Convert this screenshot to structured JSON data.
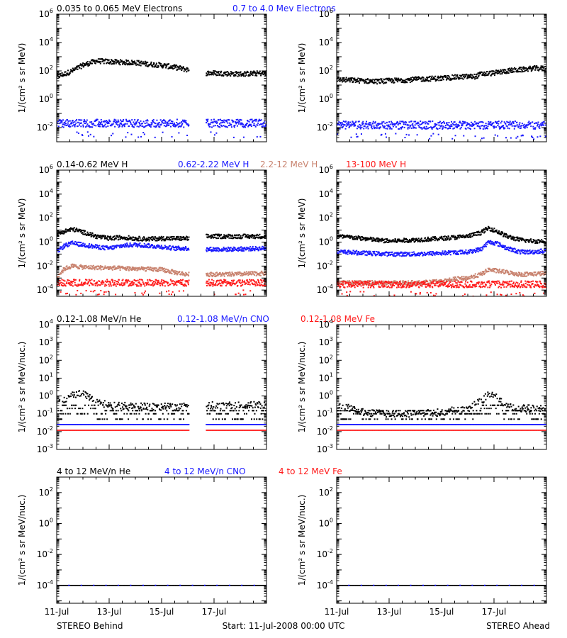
{
  "colors": {
    "black": "#000000",
    "blue": "#1a1aff",
    "brown": "#c8826e",
    "red": "#ff1a1a"
  },
  "footer": {
    "left": "STEREO Behind",
    "center": "Start: 11-Jul-2008 00:00 UTC",
    "right": "STEREO Ahead"
  },
  "x_ticks": [
    "11-Jul",
    "13-Jul",
    "15-Jul",
    "17-Jul"
  ],
  "chart_data": [
    {
      "type": "scatter",
      "title_parts": [
        {
          "text": "0.035 to 0.065 MeV Electrons",
          "color": "black"
        },
        {
          "text": "0.7 to 4.0 Mev Electrons",
          "color": "blue"
        }
      ],
      "ylabel": "1/(cm² s sr MeV)",
      "y_scale": "log",
      "ylim": [
        0.001,
        1000000
      ],
      "y_ticks": [
        {
          "exp": -2,
          "label": "10",
          "sup": "-2"
        },
        {
          "exp": 0,
          "label": "10",
          "sup": "0"
        },
        {
          "exp": 2,
          "label": "10",
          "sup": "2"
        },
        {
          "exp": 4,
          "label": "10",
          "sup": "4"
        },
        {
          "exp": 6,
          "label": "10",
          "sup": "6"
        }
      ],
      "xlim_days": [
        0,
        8
      ],
      "panels": [
        {
          "name": "STEREO Behind",
          "gap": [
            5.05,
            5.7
          ],
          "series": [
            {
              "name": "0.035 to 0.065 MeV Electrons",
              "color": "black",
              "style": "band",
              "x": [
                0,
                0.3,
                0.6,
                1.0,
                1.5,
                2.0,
                2.5,
                3.0,
                3.5,
                4.0,
                4.5,
                5.0,
                5.7,
                6.0,
                6.5,
                7.0,
                7.5,
                8.0
              ],
              "y": [
                40,
                60,
                100,
                250,
                500,
                450,
                400,
                380,
                300,
                250,
                180,
                120,
                70,
                70,
                65,
                60,
                65,
                70
              ]
            },
            {
              "name": "0.7 to 4.0 Mev Electrons",
              "color": "blue",
              "style": "scatter",
              "x": [
                0,
                8
              ],
              "y": [
                0.02,
                0.02
              ]
            }
          ]
        },
        {
          "name": "STEREO Ahead",
          "gap": null,
          "series": [
            {
              "name": "0.035 to 0.065 MeV Electrons",
              "color": "black",
              "style": "band",
              "x": [
                0,
                0.5,
                1.0,
                1.5,
                2.0,
                2.5,
                3.0,
                3.5,
                4.0,
                4.5,
                5.0,
                5.3,
                5.5,
                6.0,
                6.5,
                7.0,
                7.5,
                8.0
              ],
              "y": [
                25,
                22,
                20,
                18,
                20,
                22,
                25,
                28,
                30,
                35,
                40,
                40,
                60,
                70,
                100,
                120,
                150,
                150
              ]
            },
            {
              "name": "0.7 to 4.0 Mev Electrons",
              "color": "blue",
              "style": "scatter",
              "x": [
                0,
                8
              ],
              "y": [
                0.015,
                0.015
              ]
            }
          ]
        }
      ]
    },
    {
      "type": "scatter",
      "title_parts": [
        {
          "text": "0.14-0.62 MeV H",
          "color": "black"
        },
        {
          "text": "0.62-2.22 MeV H",
          "color": "blue"
        },
        {
          "text": "2.2-12 MeV H",
          "color": "brown"
        },
        {
          "text": "13-100 MeV H",
          "color": "red"
        }
      ],
      "ylabel": "1/(cm² s sr MeV)",
      "y_scale": "log",
      "ylim": [
        3e-05,
        1000000
      ],
      "y_ticks": [
        {
          "exp": -4,
          "label": "10",
          "sup": "-4"
        },
        {
          "exp": -2,
          "label": "10",
          "sup": "-2"
        },
        {
          "exp": 0,
          "label": "10",
          "sup": "0"
        },
        {
          "exp": 2,
          "label": "10",
          "sup": "2"
        },
        {
          "exp": 4,
          "label": "10",
          "sup": "4"
        },
        {
          "exp": 6,
          "label": "10",
          "sup": "6"
        }
      ],
      "xlim_days": [
        0,
        8
      ],
      "panels": [
        {
          "name": "STEREO Behind",
          "gap": [
            5.05,
            5.7
          ],
          "series": [
            {
              "name": "0.14-0.62 MeV H",
              "color": "black",
              "style": "band",
              "x": [
                0,
                0.3,
                0.6,
                0.9,
                1.2,
                1.5,
                2.0,
                2.5,
                3.0,
                3.5,
                4.0,
                4.5,
                5.0,
                5.7,
                6.5,
                7.0,
                8.0
              ],
              "y": [
                4,
                8,
                12,
                8,
                5,
                3,
                2,
                2.5,
                2,
                1.8,
                2,
                2,
                2,
                3,
                3,
                3,
                3
              ]
            },
            {
              "name": "0.62-2.22 MeV H",
              "color": "blue",
              "style": "band",
              "x": [
                0,
                0.3,
                0.6,
                1.0,
                1.5,
                2.0,
                2.5,
                3.0,
                3.5,
                4.0,
                4.5,
                5.0,
                5.7,
                6.5,
                8.0
              ],
              "y": [
                0.15,
                0.5,
                0.8,
                0.6,
                0.4,
                0.3,
                0.5,
                0.6,
                0.5,
                0.4,
                0.3,
                0.3,
                0.25,
                0.25,
                0.3
              ]
            },
            {
              "name": "2.2-12 MeV H",
              "color": "brown",
              "style": "band",
              "x": [
                0,
                0.3,
                0.6,
                1.0,
                2.0,
                3.0,
                4.0,
                4.5,
                5.0,
                5.7,
                6.5,
                8.0
              ],
              "y": [
                0.0012,
                0.006,
                0.01,
                0.008,
                0.007,
                0.006,
                0.005,
                0.003,
                0.002,
                0.002,
                0.002,
                0.0025
              ]
            },
            {
              "name": "13-100 MeV H",
              "color": "red",
              "style": "scatter",
              "x": [
                0,
                8
              ],
              "y": [
                0.0004,
                0.0004
              ]
            }
          ]
        },
        {
          "name": "STEREO Ahead",
          "gap": null,
          "series": [
            {
              "name": "0.14-0.62 MeV H",
              "color": "black",
              "style": "band",
              "x": [
                0,
                0.5,
                1.0,
                1.5,
                2.0,
                3.0,
                4.0,
                5.0,
                5.5,
                5.8,
                6.1,
                6.5,
                7.0,
                7.5,
                8.0
              ],
              "y": [
                3,
                2.5,
                2,
                1.5,
                1.2,
                1.5,
                2,
                3,
                6,
                15,
                8,
                3,
                1.5,
                1.2,
                1.2
              ]
            },
            {
              "name": "0.62-2.22 MeV H",
              "color": "blue",
              "style": "band",
              "x": [
                0,
                0.5,
                1.0,
                2.0,
                3.0,
                4.0,
                5.0,
                5.5,
                5.8,
                6.1,
                6.5,
                7.0,
                7.5,
                8.0
              ],
              "y": [
                0.15,
                0.14,
                0.12,
                0.1,
                0.1,
                0.12,
                0.15,
                0.25,
                1,
                0.8,
                0.3,
                0.15,
                0.15,
                0.2
              ]
            },
            {
              "name": "2.2-12 MeV H",
              "color": "brown",
              "style": "band",
              "x": [
                0,
                1.0,
                2.0,
                3.0,
                4.0,
                4.5,
                5.0,
                5.5,
                5.8,
                6.1,
                6.5,
                7.0,
                8.0
              ],
              "y": [
                0.0004,
                0.0004,
                0.0004,
                0.0004,
                0.0005,
                0.0008,
                0.001,
                0.002,
                0.005,
                0.004,
                0.003,
                0.002,
                0.0025
              ]
            },
            {
              "name": "13-100 MeV H",
              "color": "red",
              "style": "scatter",
              "x": [
                0,
                8
              ],
              "y": [
                0.0003,
                0.0003
              ]
            }
          ]
        }
      ]
    },
    {
      "type": "scatter",
      "title_parts": [
        {
          "text": "0.12-1.08 MeV/n He",
          "color": "black"
        },
        {
          "text": "0.12-1.08 MeV/n CNO",
          "color": "blue"
        },
        {
          "text": "0.12-1.08 MeV Fe",
          "color": "red"
        }
      ],
      "ylabel": "1/(cm² s sr MeV/nuc.)",
      "y_scale": "log",
      "ylim": [
        0.001,
        10000
      ],
      "y_ticks": [
        {
          "exp": -3,
          "label": "10",
          "sup": "-3"
        },
        {
          "exp": -2,
          "label": "10",
          "sup": "-2"
        },
        {
          "exp": -1,
          "label": "10",
          "sup": "-1"
        },
        {
          "exp": 0,
          "label": "10",
          "sup": "0"
        },
        {
          "exp": 1,
          "label": "10",
          "sup": "1"
        },
        {
          "exp": 2,
          "label": "10",
          "sup": "2"
        },
        {
          "exp": 3,
          "label": "10",
          "sup": "3"
        },
        {
          "exp": 4,
          "label": "10",
          "sup": "4"
        }
      ],
      "xlim_days": [
        0,
        8
      ],
      "panels": [
        {
          "name": "STEREO Behind",
          "gap": [
            5.05,
            5.7
          ],
          "series": [
            {
              "name": "0.12-1.08 MeV/n He",
              "color": "black",
              "style": "levels",
              "x": [
                0,
                0.5,
                1.0,
                1.5,
                2.0,
                3.0,
                4.0,
                5.0,
                5.7,
                8.0
              ],
              "y": [
                0.3,
                1.0,
                1.5,
                0.5,
                0.3,
                0.25,
                0.25,
                0.25,
                0.3,
                0.3
              ]
            },
            {
              "name": "0.12-1.08 MeV/n CNO",
              "color": "blue",
              "style": "floor",
              "x": [
                0,
                8
              ],
              "y": [
                0.025,
                0.025
              ]
            },
            {
              "name": "0.12-1.08 MeV Fe",
              "color": "red",
              "style": "floor",
              "x": [
                0,
                8
              ],
              "y": [
                0.012,
                0.012
              ]
            }
          ]
        },
        {
          "name": "STEREO Ahead",
          "gap": null,
          "series": [
            {
              "name": "0.12-1.08 MeV/n He",
              "color": "black",
              "style": "levels",
              "x": [
                0,
                0.5,
                1.0,
                2.0,
                3.0,
                4.0,
                5.0,
                5.5,
                5.8,
                6.1,
                6.5,
                7.0,
                8.0
              ],
              "y": [
                0.3,
                0.2,
                0.12,
                0.1,
                0.1,
                0.12,
                0.2,
                0.5,
                1.2,
                0.8,
                0.3,
                0.2,
                0.2
              ]
            },
            {
              "name": "0.12-1.08 MeV/n CNO",
              "color": "blue",
              "style": "floor",
              "x": [
                0,
                8
              ],
              "y": [
                0.025,
                0.025
              ]
            },
            {
              "name": "0.12-1.08 MeV Fe",
              "color": "red",
              "style": "floor",
              "x": [
                0,
                8
              ],
              "y": [
                0.012,
                0.012
              ]
            }
          ]
        }
      ]
    },
    {
      "type": "scatter",
      "title_parts": [
        {
          "text": "4 to 12 MeV/n He",
          "color": "black"
        },
        {
          "text": "4 to 12 MeV/n CNO",
          "color": "blue"
        },
        {
          "text": "4 to 12 MeV Fe",
          "color": "red"
        }
      ],
      "ylabel": "1/(cm² s sr MeV/nuc.)",
      "y_scale": "log",
      "ylim": [
        7e-06,
        1000
      ],
      "y_ticks": [
        {
          "exp": -4,
          "label": "10",
          "sup": "-4"
        },
        {
          "exp": -2,
          "label": "10",
          "sup": "-2"
        },
        {
          "exp": 0,
          "label": "10",
          "sup": "0"
        },
        {
          "exp": 2,
          "label": "10",
          "sup": "2"
        }
      ],
      "xlim_days": [
        0,
        8
      ],
      "panels": [
        {
          "name": "STEREO Behind",
          "gap": null,
          "series": [
            {
              "name": "4 to 12 MeV/n He",
              "color": "black",
              "style": "floor",
              "x": [
                0,
                8
              ],
              "y": [
                0.0001,
                0.0001
              ]
            },
            {
              "name": "4 to 12 MeV/n CNO",
              "color": "blue",
              "style": "sparse",
              "x": [
                0,
                8
              ],
              "y": [
                0.0001,
                0.0001
              ]
            }
          ]
        },
        {
          "name": "STEREO Ahead",
          "gap": null,
          "series": [
            {
              "name": "4 to 12 MeV/n He",
              "color": "black",
              "style": "floor",
              "x": [
                0,
                8
              ],
              "y": [
                0.0001,
                0.0001
              ]
            },
            {
              "name": "4 to 12 MeV/n CNO",
              "color": "blue",
              "style": "sparse",
              "x": [
                0,
                8
              ],
              "y": [
                0.0001,
                0.0001
              ]
            }
          ]
        }
      ]
    }
  ]
}
